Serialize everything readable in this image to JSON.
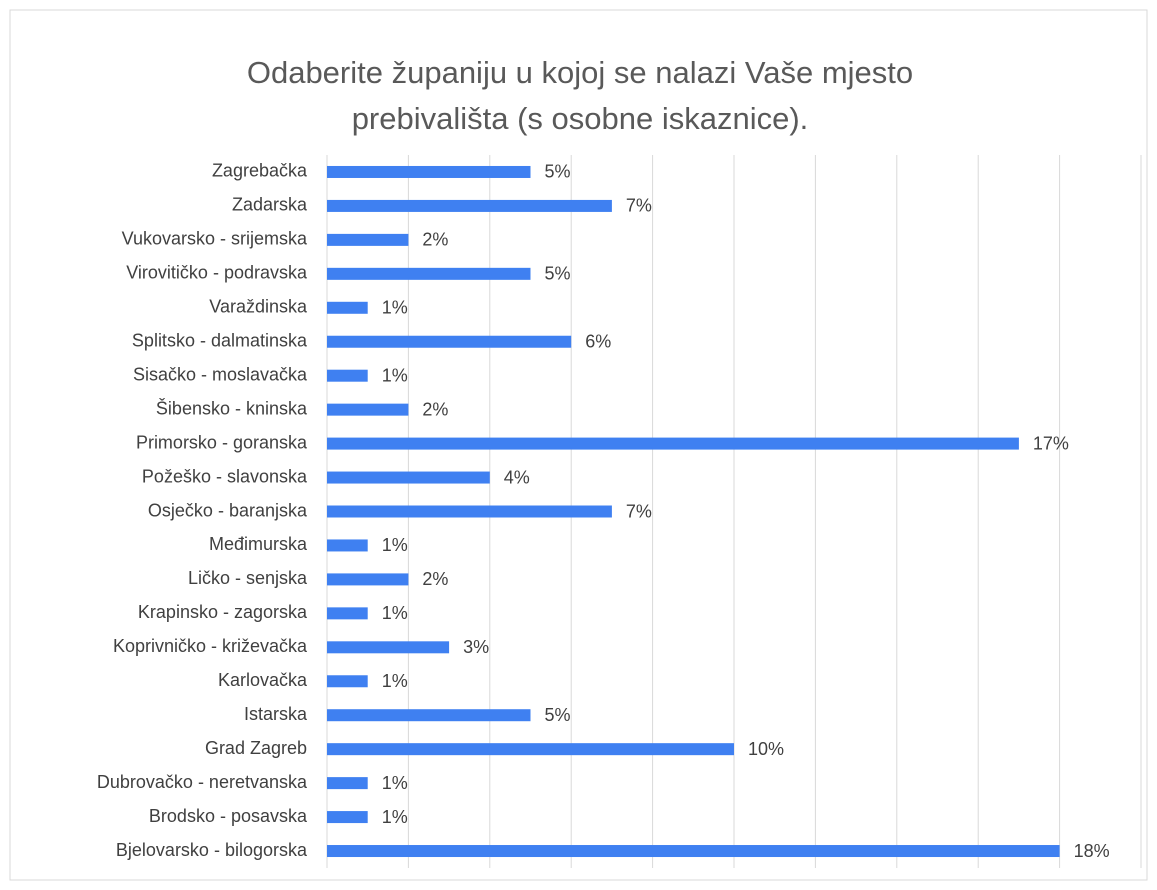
{
  "chart_data": {
    "type": "bar",
    "orientation": "horizontal",
    "title": "Odaberite županiju u kojoj se nalazi Vaše mjesto prebivališta (s osobne iskaznice).",
    "categories": [
      "Zagrebačka",
      "Zadarska",
      "Vukovarsko - srijemska",
      "Virovitičko - podravska",
      "Varaždinska",
      "Splitsko - dalmatinska",
      "Sisačko - moslavačka",
      "Šibensko - kninska",
      "Primorsko - goranska",
      "Požeško - slavonska",
      "Osječko - baranjska",
      "Međimurska",
      "Ličko - senjska",
      "Krapinsko - zagorska",
      "Koprivničko - križevačka",
      "Karlovačka",
      "Istarska",
      "Grad Zagreb",
      "Dubrovačko - neretvanska",
      "Brodsko - posavska",
      "Bjelovarsko - bilogorska"
    ],
    "values": [
      5,
      7,
      2,
      5,
      1,
      6,
      1,
      2,
      17,
      4,
      7,
      1,
      2,
      1,
      3,
      1,
      5,
      10,
      1,
      1,
      18
    ],
    "value_labels": [
      "5%",
      "7%",
      "2%",
      "5%",
      "1%",
      "6%",
      "1%",
      "2%",
      "17%",
      "4%",
      "7%",
      "1%",
      "2%",
      "1%",
      "3%",
      "1%",
      "5%",
      "10%",
      "1%",
      "1%",
      "18%"
    ],
    "color": "#3f80f1",
    "xlim": [
      0,
      20
    ],
    "xticks": [
      0,
      2,
      4,
      6,
      8,
      10,
      12,
      14,
      16,
      18,
      20
    ],
    "grid": true
  }
}
